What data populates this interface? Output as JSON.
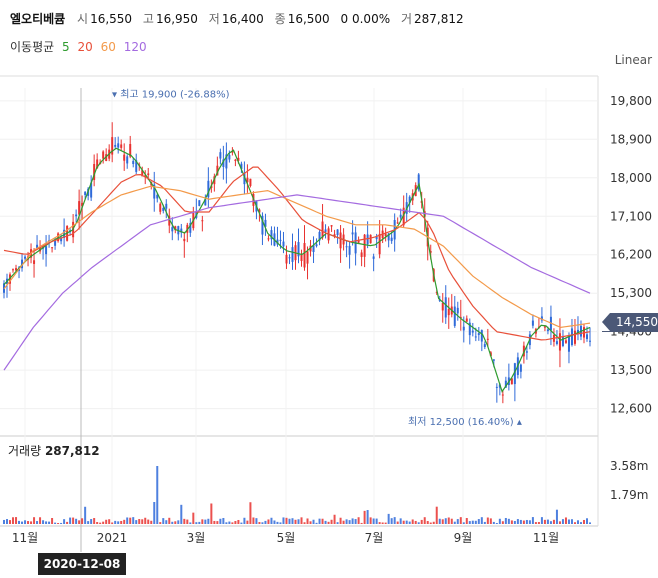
{
  "header": {
    "name": "엘오티베큠",
    "open_label": "시",
    "open_value": "16,550",
    "high_label": "고",
    "high_value": "16,950",
    "low_label": "저",
    "low_value": "16,400",
    "close_label": "종",
    "close_value": "16,500",
    "change_value": "0 0.00%",
    "volume_label": "거",
    "volume_value": "287,812"
  },
  "moving_average": {
    "label": "이동평균",
    "periods": [
      "5",
      "20",
      "60",
      "120"
    ],
    "colors": [
      "#2e9b2e",
      "#e8503a",
      "#f39a4a",
      "#a46be0"
    ]
  },
  "scale_label": "Linear",
  "volume_panel": {
    "label": "거래량",
    "value": "287,812"
  },
  "current_price": "14,550",
  "crosshair_date": "2020-12-08",
  "annotations": {
    "high": {
      "prefix": "최고",
      "value": "19,900 (-26.88%)"
    },
    "low": {
      "prefix": "최저",
      "value": "12,500 (16.40%)"
    }
  },
  "colors": {
    "up": "#e8312f",
    "down": "#2f6ad9",
    "grid": "#eeeeee"
  },
  "chart_data": {
    "type": "line",
    "title": "",
    "y_ticks": [
      "19,800",
      "18,900",
      "18,000",
      "17,100",
      "16,200",
      "15,300",
      "14,400",
      "13,500",
      "12,600"
    ],
    "ylim": [
      12100,
      20100
    ],
    "x_tick_labels": [
      "11월",
      "2021",
      "3월",
      "5월",
      "7월",
      "9월",
      "11월"
    ],
    "volume_ticks": [
      "3.58m",
      "1.79m"
    ],
    "grid": true,
    "series": [
      {
        "name": "5",
        "x": [
          0,
          0.04,
          0.08,
          0.12,
          0.16,
          0.19,
          0.22,
          0.26,
          0.29,
          0.31,
          0.34,
          0.37,
          0.39,
          0.42,
          0.45,
          0.48,
          0.51,
          0.55,
          0.59,
          0.63,
          0.67,
          0.71,
          0.72,
          0.74,
          0.78,
          0.82,
          0.85,
          0.87,
          0.9,
          0.92,
          0.95,
          1.0
        ],
        "y": [
          15500,
          16100,
          16500,
          16800,
          18300,
          18700,
          18500,
          17700,
          16800,
          16700,
          17400,
          18300,
          18700,
          17700,
          16700,
          16300,
          16200,
          16700,
          16500,
          16400,
          16800,
          17900,
          16800,
          15200,
          14700,
          14300,
          13000,
          13400,
          14300,
          14600,
          14200,
          14500
        ]
      },
      {
        "name": "20",
        "x": [
          0,
          0.04,
          0.08,
          0.12,
          0.16,
          0.2,
          0.23,
          0.27,
          0.31,
          0.35,
          0.39,
          0.43,
          0.47,
          0.51,
          0.55,
          0.59,
          0.63,
          0.67,
          0.71,
          0.73,
          0.76,
          0.8,
          0.84,
          0.88,
          0.92,
          0.96,
          1.0
        ],
        "y": [
          16300,
          16200,
          16500,
          16700,
          17300,
          17900,
          18100,
          17800,
          17200,
          17200,
          17900,
          18300,
          17700,
          17000,
          16700,
          16500,
          16600,
          16800,
          17200,
          16800,
          15800,
          15000,
          14400,
          14300,
          14200,
          14300,
          14400
        ]
      },
      {
        "name": "60",
        "x": [
          0,
          0.05,
          0.1,
          0.15,
          0.2,
          0.25,
          0.3,
          0.35,
          0.4,
          0.45,
          0.5,
          0.55,
          0.6,
          0.65,
          0.7,
          0.75,
          0.8,
          0.85,
          0.9,
          0.95,
          1.0
        ],
        "y": [
          15400,
          16300,
          16700,
          17200,
          17600,
          17800,
          17700,
          17500,
          17600,
          17700,
          17400,
          17100,
          16900,
          16900,
          16800,
          16400,
          15700,
          15200,
          14800,
          14500,
          14600
        ]
      },
      {
        "name": "120",
        "x": [
          0,
          0.05,
          0.1,
          0.15,
          0.2,
          0.25,
          0.3,
          0.35,
          0.4,
          0.45,
          0.5,
          0.55,
          0.6,
          0.65,
          0.7,
          0.75,
          0.8,
          0.85,
          0.9,
          0.95,
          1.0
        ],
        "y": [
          13500,
          14500,
          15300,
          15900,
          16400,
          16900,
          17100,
          17300,
          17400,
          17500,
          17600,
          17500,
          17400,
          17300,
          17200,
          17100,
          16700,
          16300,
          15900,
          15600,
          15300
        ]
      }
    ]
  }
}
